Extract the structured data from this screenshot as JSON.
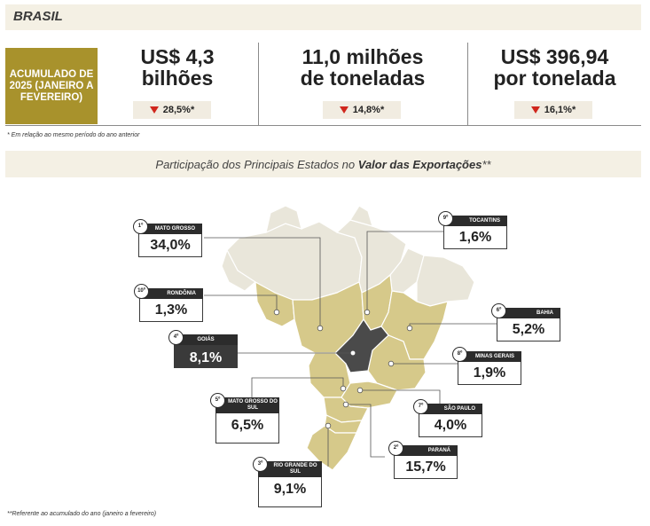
{
  "header": {
    "title": "BRASIL"
  },
  "summary": {
    "period_label": "ACUMULADO DE 2025 (JANEIRO A FEVEREIRO)",
    "kpis": [
      {
        "value_line1": "US$ 4,3",
        "value_line2": "bilhões",
        "change": "28,5%*",
        "direction": "down"
      },
      {
        "value_line1": "11,0 milhões",
        "value_line2": "de toneladas",
        "change": "14,8%*",
        "direction": "down"
      },
      {
        "value_line1": "US$ 396,94",
        "value_line2": "por tonelada",
        "change": "16,1%*",
        "direction": "down"
      }
    ],
    "footnote": "* Em relação ao mesmo período do ano anterior"
  },
  "map_section": {
    "subtitle_prefix": "Participação dos Principais Estados no ",
    "subtitle_bold": "Valor das Exportações",
    "subtitle_suffix": "**",
    "footnote": "**Referente ao acumulado do ano (janeiro a fevereiro)"
  },
  "chart_data": {
    "type": "choropleth-map",
    "states": [
      {
        "rank": "1º",
        "name": "MATO GROSSO",
        "share": "34,0%"
      },
      {
        "rank": "2º",
        "name": "PARANÁ",
        "share": "15,7%"
      },
      {
        "rank": "3º",
        "name": "RIO GRANDE DO SUL",
        "share": "9,1%"
      },
      {
        "rank": "4º",
        "name": "GOIÁS",
        "share": "8,1%"
      },
      {
        "rank": "5º",
        "name": "MATO GROSSO DO SUL",
        "share": "6,5%"
      },
      {
        "rank": "6º",
        "name": "BAHIA",
        "share": "5,2%"
      },
      {
        "rank": "7º",
        "name": "SÃO PAULO",
        "share": "4,0%"
      },
      {
        "rank": "8º",
        "name": "MINAS GERAIS",
        "share": "1,9%"
      },
      {
        "rank": "9º",
        "name": "TOCANTINS",
        "share": "1,6%"
      },
      {
        "rank": "10º",
        "name": "RONDÔNIA",
        "share": "1,3%"
      }
    ],
    "colors": {
      "highlight": "#d6c98a",
      "selected": "#4a4a4a",
      "other": "#e9e6da"
    }
  }
}
